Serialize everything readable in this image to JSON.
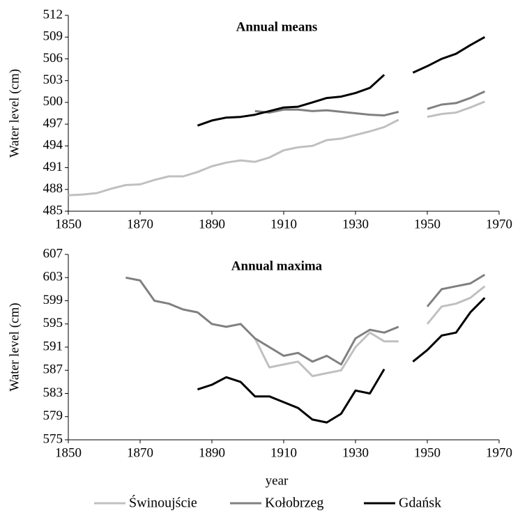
{
  "chart_data": [
    {
      "type": "line",
      "title": "Annual means",
      "ylabel": "Water level (cm)",
      "x": [
        1850,
        1854,
        1858,
        1862,
        1866,
        1870,
        1874,
        1878,
        1882,
        1886,
        1890,
        1894,
        1898,
        1902,
        1906,
        1910,
        1914,
        1918,
        1922,
        1926,
        1930,
        1934,
        1938,
        1942,
        1946,
        1950,
        1954,
        1958,
        1962,
        1966
      ],
      "series": [
        {
          "color": "#c0c0c0",
          "values": [
            487.2,
            487.3,
            487.5,
            488.1,
            488.6,
            488.7,
            489.3,
            489.8,
            489.8,
            490.4,
            491.2,
            491.7,
            492.0,
            491.8,
            492.4,
            493.4,
            493.8,
            494.0,
            494.8,
            495.0,
            495.5,
            496.0,
            496.6,
            497.6,
            null,
            498.0,
            498.4,
            498.6,
            499.3,
            500.1
          ]
        },
        {
          "color": "#808080",
          "values": [
            null,
            null,
            null,
            null,
            null,
            null,
            null,
            null,
            null,
            null,
            null,
            null,
            null,
            498.8,
            498.6,
            499.0,
            499.0,
            498.8,
            498.9,
            498.7,
            498.5,
            498.3,
            498.2,
            498.7,
            null,
            499.1,
            499.7,
            499.9,
            500.6,
            501.5
          ]
        },
        {
          "color": "#000000",
          "values": [
            null,
            null,
            null,
            null,
            null,
            null,
            null,
            null,
            null,
            496.8,
            497.5,
            497.9,
            498.0,
            498.3,
            498.8,
            499.3,
            499.4,
            500.0,
            500.6,
            500.8,
            501.3,
            502.0,
            503.8,
            null,
            504.1,
            505.0,
            506.0,
            506.7,
            507.9,
            509.0
          ]
        }
      ],
      "xlim": [
        1850,
        1970
      ],
      "xticks": [
        1850,
        1870,
        1890,
        1910,
        1930,
        1950,
        1970
      ],
      "ylim": [
        485,
        512
      ],
      "yticks": [
        485,
        488,
        491,
        494,
        497,
        500,
        503,
        506,
        509,
        512
      ],
      "grid": false
    },
    {
      "type": "line",
      "title": "Annual maxima",
      "ylabel": "Water level (cm)",
      "xlabel": "year",
      "x": [
        1850,
        1854,
        1858,
        1862,
        1866,
        1870,
        1874,
        1878,
        1882,
        1886,
        1890,
        1894,
        1898,
        1902,
        1906,
        1910,
        1914,
        1918,
        1922,
        1926,
        1930,
        1934,
        1938,
        1942,
        1946,
        1950,
        1954,
        1958,
        1962,
        1966
      ],
      "series": [
        {
          "name": "Świnoujście",
          "color": "#c0c0c0",
          "values": [
            null,
            null,
            null,
            null,
            null,
            null,
            null,
            null,
            null,
            null,
            null,
            null,
            null,
            592.5,
            587.5,
            588,
            588.5,
            586,
            586.5,
            587,
            591,
            593.5,
            592,
            592,
            null,
            595,
            598,
            598.5,
            599.5,
            601.5
          ]
        },
        {
          "name": "Kołobrzeg",
          "color": "#808080",
          "values": [
            null,
            null,
            null,
            null,
            603,
            602.5,
            599,
            598.5,
            597.5,
            597,
            595,
            594.5,
            595,
            592.5,
            591,
            589.5,
            590,
            588.5,
            589.5,
            588,
            592.5,
            594,
            593.5,
            594.5,
            null,
            598,
            601,
            601.5,
            602,
            603.5
          ]
        },
        {
          "name": "Gdańsk",
          "color": "#000000",
          "values": [
            null,
            null,
            null,
            null,
            null,
            null,
            null,
            null,
            null,
            583.7,
            584.5,
            585.8,
            585,
            582.5,
            582.5,
            581.5,
            580.5,
            578.5,
            578,
            579.5,
            583.5,
            583,
            587.2,
            null,
            588.5,
            590.5,
            593,
            593.5,
            597,
            599.5
          ]
        }
      ],
      "xlim": [
        1850,
        1970
      ],
      "xticks": [
        1850,
        1870,
        1890,
        1910,
        1930,
        1950,
        1970
      ],
      "ylim": [
        575,
        607
      ],
      "yticks": [
        575,
        579,
        583,
        587,
        591,
        595,
        599,
        603,
        607
      ],
      "grid": false
    }
  ]
}
